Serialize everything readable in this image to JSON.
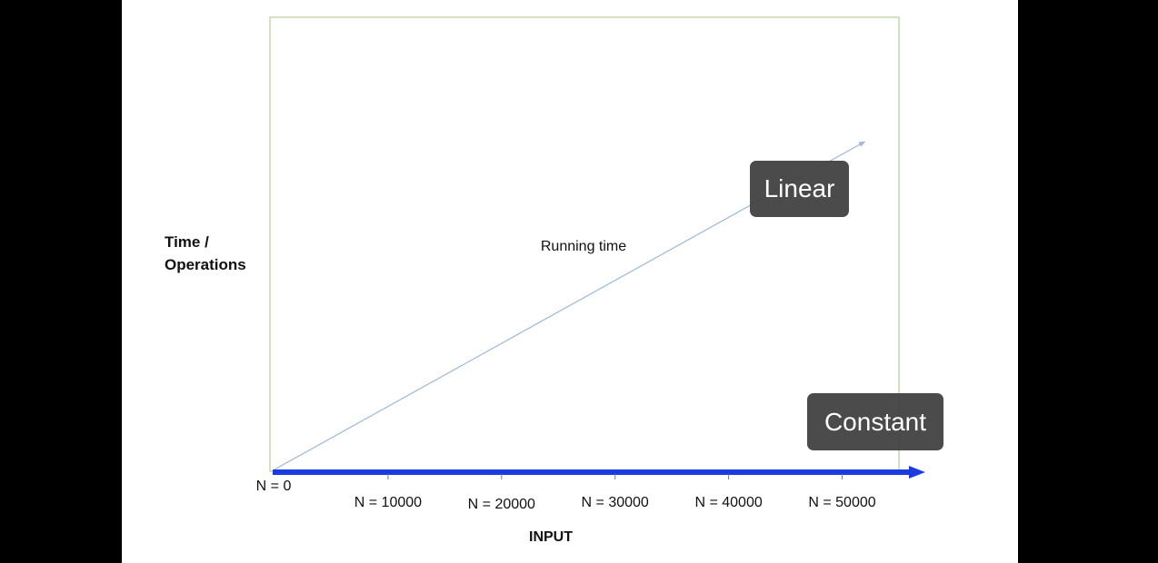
{
  "chart_data": {
    "type": "line",
    "title": "",
    "xlabel": "INPUT",
    "ylabel": "Time / Operations",
    "x_ticks": [
      "N = 0",
      "N = 10000",
      "N = 20000",
      "N = 30000",
      "N = 40000",
      "N = 50000"
    ],
    "x_tick_values": [
      0,
      10000,
      20000,
      30000,
      40000,
      50000
    ],
    "series": [
      {
        "name": "Linear",
        "x": [
          0,
          52000
        ],
        "y": [
          0,
          1
        ],
        "color": "#9db8d6"
      },
      {
        "name": "Constant",
        "x": [
          0,
          57000
        ],
        "y": [
          0,
          0
        ],
        "color": "#1a3be0"
      }
    ],
    "annotations": [
      "Running time"
    ],
    "grid": false,
    "frame_color": "#a9c48a"
  }
}
